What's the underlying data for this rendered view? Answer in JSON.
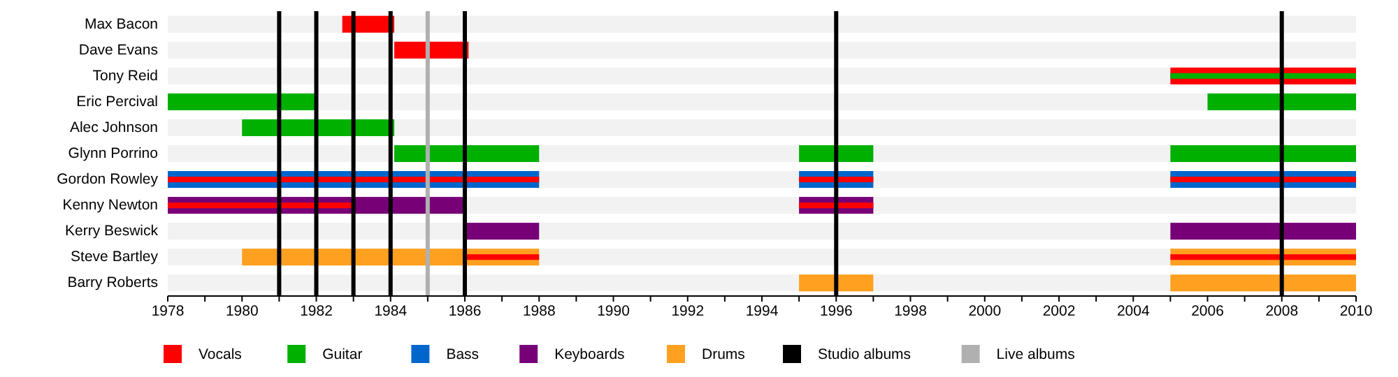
{
  "chart_data": {
    "type": "bar",
    "orientation": "horizontal",
    "categories": [
      "Max Bacon",
      "Dave Evans",
      "Tony Reid",
      "Eric Percival",
      "Alec Johnson",
      "Glynn Porrino",
      "Gordon Rowley",
      "Kenny Newton",
      "Kerry Beswick",
      "Steve Bartley",
      "Barry Roberts"
    ],
    "series": [
      {
        "name": "Vocals",
        "color": "#ff0000",
        "base": [
          1982.7,
          1984.1,
          2005,
          null,
          null,
          null,
          null,
          null,
          null,
          null,
          null
        ],
        "values": [
          1.4,
          2,
          5,
          null,
          null,
          null,
          null,
          null,
          null,
          null,
          null
        ]
      },
      {
        "name": "Guitar",
        "color": "#00b000",
        "base": [
          null,
          null,
          null,
          1978,
          1980,
          1984.1,
          null,
          null,
          null,
          null,
          null
        ],
        "values": [
          null,
          null,
          null,
          4,
          4.1,
          3.9,
          null,
          null,
          null,
          null,
          null
        ]
      },
      {
        "color": "#00b000",
        "base": [
          null,
          null,
          null,
          2006,
          null,
          1995,
          null,
          null,
          null,
          null,
          null
        ],
        "values": [
          null,
          null,
          null,
          4,
          null,
          2,
          null,
          null,
          null,
          null,
          null
        ]
      },
      {
        "color": "#00b000",
        "base": [
          null,
          null,
          2005,
          null,
          null,
          2005,
          null,
          null,
          null,
          null,
          null
        ],
        "values": [
          null,
          null,
          5,
          null,
          null,
          5,
          null,
          null,
          null,
          null,
          null
        ]
      },
      {
        "name": "Bass",
        "color": "#0066cc",
        "base": [
          null,
          null,
          null,
          null,
          null,
          null,
          1978,
          null,
          null,
          null,
          null
        ],
        "values": [
          null,
          null,
          null,
          null,
          null,
          null,
          10,
          null,
          null,
          null,
          null
        ]
      },
      {
        "color": "#0066cc",
        "base": [
          null,
          null,
          null,
          null,
          null,
          null,
          1995,
          null,
          null,
          null,
          null
        ],
        "values": [
          null,
          null,
          null,
          null,
          null,
          null,
          2,
          null,
          null,
          null,
          null
        ]
      },
      {
        "color": "#0066cc",
        "base": [
          null,
          null,
          null,
          null,
          null,
          null,
          2005,
          null,
          null,
          null,
          null
        ],
        "values": [
          null,
          null,
          null,
          null,
          null,
          null,
          5,
          null,
          null,
          null,
          null
        ]
      },
      {
        "name": "Keyboards",
        "color": "#770077",
        "base": [
          null,
          null,
          null,
          null,
          null,
          null,
          null,
          1978,
          1986,
          null,
          null
        ],
        "values": [
          null,
          null,
          null,
          null,
          null,
          null,
          null,
          8,
          2,
          null,
          null
        ]
      },
      {
        "color": "#770077",
        "base": [
          null,
          null,
          null,
          null,
          null,
          null,
          null,
          1995,
          2005,
          null,
          null
        ],
        "values": [
          null,
          null,
          null,
          null,
          null,
          null,
          null,
          2,
          5,
          null,
          null
        ]
      },
      {
        "name": "Drums",
        "color": "#ffa020",
        "base": [
          null,
          null,
          null,
          null,
          null,
          null,
          null,
          null,
          null,
          1980,
          1995
        ],
        "values": [
          null,
          null,
          null,
          null,
          null,
          null,
          null,
          null,
          null,
          8,
          2
        ]
      },
      {
        "color": "#ffa020",
        "base": [
          null,
          null,
          null,
          null,
          null,
          null,
          null,
          null,
          null,
          2005,
          2005
        ],
        "values": [
          null,
          null,
          null,
          null,
          null,
          null,
          null,
          null,
          null,
          5,
          5
        ]
      },
      {
        "color": "#ff0000",
        "base": [
          null,
          null,
          null,
          null,
          null,
          null,
          1978,
          1978,
          null,
          1986,
          null
        ],
        "values": [
          null,
          null,
          null,
          null,
          null,
          null,
          10,
          5,
          null,
          2,
          null
        ]
      },
      {
        "color": "#ff0000",
        "base": [
          null,
          null,
          null,
          null,
          null,
          null,
          1995,
          1995,
          null,
          2005,
          null
        ],
        "values": [
          null,
          null,
          null,
          null,
          null,
          null,
          2,
          2,
          null,
          5,
          null
        ]
      },
      {
        "color": "#ff0000",
        "base": [
          null,
          null,
          null,
          null,
          null,
          null,
          2005,
          null,
          null,
          null,
          null
        ],
        "values": [
          null,
          null,
          null,
          null,
          null,
          null,
          5,
          null,
          null,
          null,
          null
        ]
      }
    ],
    "xlim": [
      1978,
      2010
    ],
    "xticks": [
      1978,
      {
        "value": 1979,
        "label": null
      },
      1980,
      {
        "value": 1981,
        "label": null
      },
      1982,
      {
        "value": 1983,
        "label": null
      },
      1984,
      {
        "value": 1985,
        "label": null
      },
      1986,
      {
        "value": 1987,
        "label": null
      },
      1988,
      {
        "value": 1989,
        "label": null
      },
      1990,
      {
        "value": 1991,
        "label": null
      },
      1992,
      {
        "value": 1993,
        "label": null
      },
      1994,
      {
        "value": 1995,
        "label": null
      },
      1996,
      {
        "value": 1997,
        "label": null
      },
      1998,
      {
        "value": 1999,
        "label": null
      },
      2000,
      {
        "value": 2001,
        "label": null
      },
      2002,
      {
        "value": 2003,
        "label": null
      },
      2004,
      {
        "value": 2005,
        "label": null
      },
      2006,
      {
        "value": 2007,
        "label": null
      },
      2008,
      {
        "value": 2009,
        "label": null
      },
      2010
    ],
    "ref_lines": [
      {
        "axis": "x",
        "value": 1981,
        "label": "Studio albums",
        "color": "#000000"
      },
      {
        "axis": "x",
        "value": 1982,
        "color": "#000000"
      },
      {
        "axis": "x",
        "value": 1983,
        "color": "#000000"
      },
      {
        "axis": "x",
        "value": 1984,
        "color": "#000000"
      },
      {
        "axis": "x",
        "value": 1986,
        "color": "#000000"
      },
      {
        "axis": "x",
        "value": 1996,
        "color": "#000000"
      },
      {
        "axis": "x",
        "value": 2008,
        "color": "#000000"
      },
      {
        "axis": "x",
        "value": 1985,
        "label": "Live albums",
        "color": "#b0b0b0"
      }
    ],
    "legend": "bottom"
  }
}
